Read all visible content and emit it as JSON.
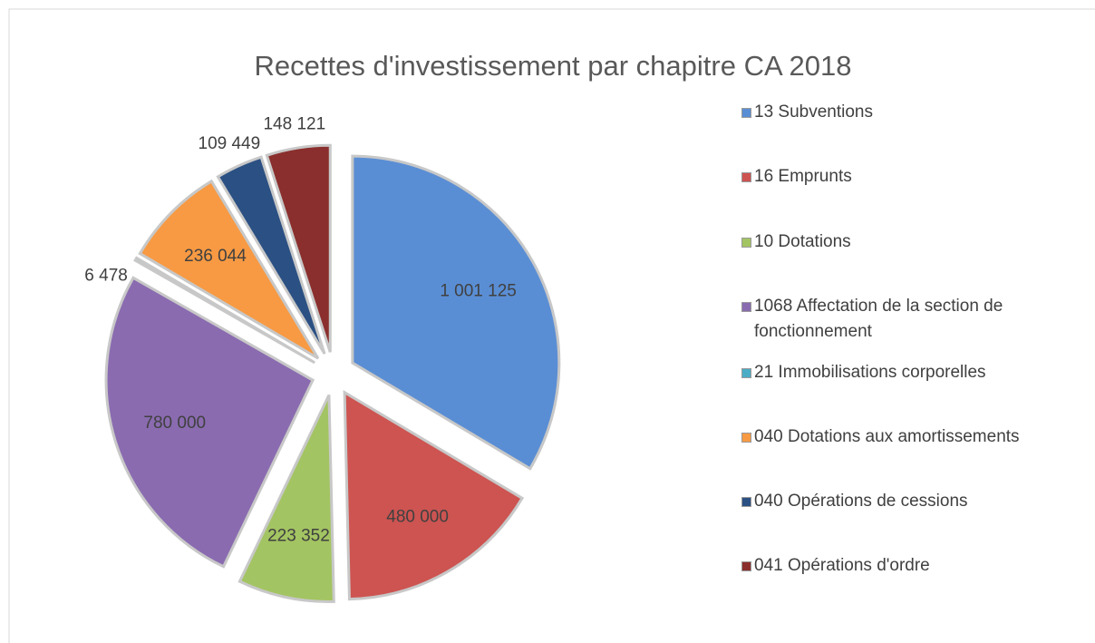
{
  "chart_data": {
    "type": "pie",
    "title": "Recettes d'investissement par chapitre CA 2018",
    "categories": [
      "13 Subventions",
      "16 Emprunts",
      "10 Dotations",
      "1068 Affectation de la section de fonctionnement",
      "21 Immobilisations corporelles",
      "040 Dotations aux amortissements",
      "040 Opérations de cessions",
      "041 Opérations d'ordre"
    ],
    "values": [
      1001125,
      480000,
      223352,
      780000,
      6478,
      236044,
      109449,
      148121
    ],
    "value_labels": [
      "1 001 125",
      "480 000",
      "223 352",
      "780 000",
      "6 478",
      "236 044",
      "109 449",
      "148 121"
    ],
    "colors": [
      "#5a8ed4",
      "#cd5451",
      "#a3c462",
      "#8a6bb0",
      "#4bacc6",
      "#f79a43",
      "#2b5083",
      "#8a2f2d"
    ],
    "legend": "right"
  }
}
